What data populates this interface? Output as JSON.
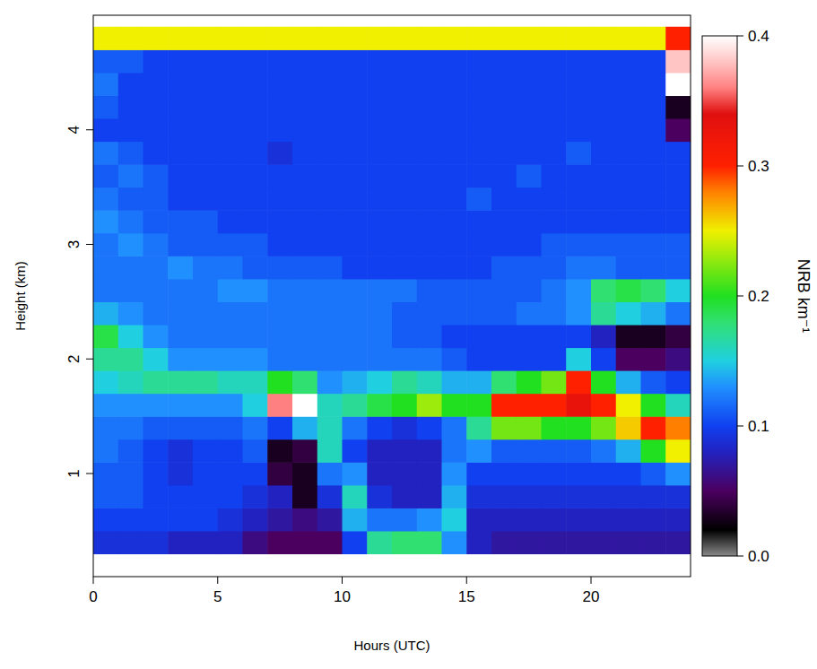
{
  "chart_data": {
    "type": "heatmap",
    "xlabel": "Hours (UTC)",
    "ylabel": "Height (km)",
    "colorbar_label": "NRB km⁻¹",
    "xlim": [
      0,
      24
    ],
    "ylim": [
      0.1,
      5
    ],
    "xticks": [
      0,
      5,
      10,
      15,
      20
    ],
    "yticks": [
      1,
      2,
      3,
      4
    ],
    "colorbar_range": [
      0,
      0.4
    ],
    "colorbar_ticks": [
      {
        "value": 0,
        "label": "0.0"
      },
      0.1,
      0.2,
      0.3,
      0.4
    ],
    "x": [
      0.5,
      1.5,
      2.5,
      3.5,
      4.5,
      5.5,
      6.5,
      7.5,
      8.5,
      9.5,
      10.5,
      11.5,
      12.5,
      13.5,
      14.5,
      15.5,
      16.5,
      17.5,
      18.5,
      19.5,
      20.5,
      21.5,
      22.5,
      23.5
    ],
    "y": [
      0.4,
      0.6,
      0.8,
      1.0,
      1.2,
      1.4,
      1.6,
      1.8,
      2.0,
      2.2,
      2.4,
      2.6,
      2.8,
      3.0,
      3.2,
      3.4,
      3.6,
      3.8,
      4.0,
      4.2,
      4.4,
      4.6,
      4.8
    ],
    "cells": [
      [
        0.09,
        0.09,
        0.09,
        0.08,
        0.08,
        0.08,
        0.06,
        0.05,
        0.05,
        0.05,
        0.1,
        0.17,
        0.18,
        0.18,
        0.13,
        0.08,
        0.07,
        0.07,
        0.07,
        0.07,
        0.07,
        0.07,
        0.07,
        0.07
      ],
      [
        0.1,
        0.1,
        0.1,
        0.1,
        0.1,
        0.09,
        0.08,
        0.07,
        0.06,
        0.07,
        0.14,
        0.12,
        0.12,
        0.13,
        0.15,
        0.08,
        0.08,
        0.08,
        0.08,
        0.08,
        0.08,
        0.08,
        0.08,
        0.08
      ],
      [
        0.11,
        0.11,
        0.1,
        0.1,
        0.1,
        0.1,
        0.09,
        0.08,
        0.03,
        0.09,
        0.16,
        0.09,
        0.08,
        0.08,
        0.14,
        0.09,
        0.09,
        0.09,
        0.09,
        0.09,
        0.09,
        0.09,
        0.09,
        0.09
      ],
      [
        0.11,
        0.11,
        0.1,
        0.09,
        0.1,
        0.1,
        0.1,
        0.04,
        0.03,
        0.12,
        0.13,
        0.08,
        0.08,
        0.08,
        0.13,
        0.1,
        0.1,
        0.1,
        0.1,
        0.1,
        0.1,
        0.1,
        0.11,
        0.13
      ],
      [
        0.12,
        0.11,
        0.1,
        0.09,
        0.1,
        0.1,
        0.11,
        0.03,
        0.04,
        0.16,
        0.1,
        0.08,
        0.08,
        0.08,
        0.12,
        0.13,
        0.11,
        0.11,
        0.11,
        0.11,
        0.12,
        0.14,
        0.2,
        0.25
      ],
      [
        0.12,
        0.12,
        0.11,
        0.11,
        0.11,
        0.11,
        0.12,
        0.1,
        0.14,
        0.16,
        0.12,
        0.1,
        0.09,
        0.1,
        0.12,
        0.17,
        0.22,
        0.22,
        0.2,
        0.2,
        0.22,
        0.26,
        0.3,
        0.28
      ],
      [
        0.13,
        0.13,
        0.13,
        0.13,
        0.13,
        0.13,
        0.15,
        0.36,
        0.4,
        0.16,
        0.17,
        0.19,
        0.2,
        0.23,
        0.2,
        0.2,
        0.3,
        0.3,
        0.3,
        0.33,
        0.3,
        0.25,
        0.2,
        0.16
      ],
      [
        0.15,
        0.16,
        0.17,
        0.17,
        0.17,
        0.16,
        0.16,
        0.2,
        0.18,
        0.13,
        0.14,
        0.15,
        0.17,
        0.16,
        0.14,
        0.14,
        0.18,
        0.2,
        0.22,
        0.3,
        0.2,
        0.14,
        0.11,
        0.1
      ],
      [
        0.17,
        0.17,
        0.15,
        0.13,
        0.13,
        0.13,
        0.13,
        0.12,
        0.12,
        0.12,
        0.12,
        0.12,
        0.12,
        0.12,
        0.11,
        0.1,
        0.1,
        0.1,
        0.1,
        0.15,
        0.1,
        0.05,
        0.05,
        0.06
      ],
      [
        0.19,
        0.15,
        0.13,
        0.12,
        0.12,
        0.12,
        0.12,
        0.12,
        0.12,
        0.12,
        0.12,
        0.12,
        0.11,
        0.11,
        0.1,
        0.1,
        0.1,
        0.1,
        0.1,
        0.1,
        0.08,
        0.03,
        0.03,
        0.04
      ],
      [
        0.14,
        0.13,
        0.12,
        0.12,
        0.12,
        0.12,
        0.12,
        0.12,
        0.12,
        0.12,
        0.12,
        0.12,
        0.11,
        0.11,
        0.11,
        0.11,
        0.11,
        0.12,
        0.12,
        0.13,
        0.17,
        0.15,
        0.14,
        0.12
      ],
      [
        0.12,
        0.12,
        0.12,
        0.12,
        0.12,
        0.13,
        0.13,
        0.12,
        0.12,
        0.12,
        0.12,
        0.12,
        0.12,
        0.11,
        0.11,
        0.11,
        0.11,
        0.11,
        0.12,
        0.13,
        0.18,
        0.19,
        0.18,
        0.15
      ],
      [
        0.12,
        0.12,
        0.12,
        0.13,
        0.12,
        0.12,
        0.11,
        0.11,
        0.11,
        0.11,
        0.1,
        0.1,
        0.1,
        0.1,
        0.1,
        0.1,
        0.11,
        0.11,
        0.11,
        0.12,
        0.12,
        0.11,
        0.11,
        0.11
      ],
      [
        0.12,
        0.13,
        0.12,
        0.11,
        0.11,
        0.11,
        0.11,
        0.1,
        0.1,
        0.1,
        0.1,
        0.1,
        0.1,
        0.1,
        0.1,
        0.1,
        0.1,
        0.1,
        0.11,
        0.11,
        0.11,
        0.11,
        0.11,
        0.11
      ],
      [
        0.13,
        0.12,
        0.11,
        0.11,
        0.11,
        0.1,
        0.1,
        0.1,
        0.1,
        0.1,
        0.1,
        0.1,
        0.1,
        0.1,
        0.1,
        0.1,
        0.1,
        0.1,
        0.1,
        0.1,
        0.1,
        0.1,
        0.1,
        0.1
      ],
      [
        0.12,
        0.11,
        0.11,
        0.1,
        0.1,
        0.1,
        0.1,
        0.1,
        0.1,
        0.1,
        0.1,
        0.1,
        0.1,
        0.1,
        0.1,
        0.11,
        0.1,
        0.1,
        0.1,
        0.1,
        0.1,
        0.1,
        0.1,
        0.1
      ],
      [
        0.11,
        0.12,
        0.11,
        0.1,
        0.1,
        0.1,
        0.1,
        0.1,
        0.1,
        0.1,
        0.1,
        0.1,
        0.1,
        0.1,
        0.1,
        0.1,
        0.1,
        0.11,
        0.1,
        0.1,
        0.1,
        0.1,
        0.1,
        0.1
      ],
      [
        0.12,
        0.11,
        0.1,
        0.1,
        0.1,
        0.1,
        0.1,
        0.09,
        0.1,
        0.1,
        0.1,
        0.1,
        0.1,
        0.1,
        0.1,
        0.1,
        0.1,
        0.1,
        0.1,
        0.11,
        0.1,
        0.1,
        0.1,
        0.1
      ],
      [
        0.1,
        0.1,
        0.1,
        0.1,
        0.1,
        0.1,
        0.1,
        0.1,
        0.1,
        0.1,
        0.1,
        0.1,
        0.1,
        0.1,
        0.1,
        0.1,
        0.1,
        0.1,
        0.1,
        0.1,
        0.1,
        0.1,
        0.1,
        0.05
      ],
      [
        0.11,
        0.1,
        0.1,
        0.1,
        0.1,
        0.1,
        0.1,
        0.1,
        0.1,
        0.1,
        0.1,
        0.1,
        0.1,
        0.1,
        0.1,
        0.1,
        0.1,
        0.1,
        0.1,
        0.1,
        0.1,
        0.1,
        0.1,
        0.03
      ],
      [
        0.12,
        0.1,
        0.1,
        0.1,
        0.1,
        0.1,
        0.1,
        0.1,
        0.1,
        0.1,
        0.1,
        0.1,
        0.1,
        0.1,
        0.1,
        0.1,
        0.1,
        0.1,
        0.1,
        0.1,
        0.1,
        0.1,
        0.1,
        0.4
      ],
      [
        0.11,
        0.11,
        0.1,
        0.1,
        0.1,
        0.1,
        0.1,
        0.1,
        0.1,
        0.1,
        0.1,
        0.1,
        0.1,
        0.1,
        0.1,
        0.1,
        0.1,
        0.1,
        0.1,
        0.1,
        0.1,
        0.1,
        0.1,
        0.38
      ],
      [
        0.25,
        0.25,
        0.25,
        0.25,
        0.25,
        0.25,
        0.25,
        0.25,
        0.25,
        0.25,
        0.25,
        0.25,
        0.25,
        0.25,
        0.25,
        0.25,
        0.25,
        0.25,
        0.25,
        0.25,
        0.25,
        0.25,
        0.25,
        0.3
      ]
    ]
  }
}
